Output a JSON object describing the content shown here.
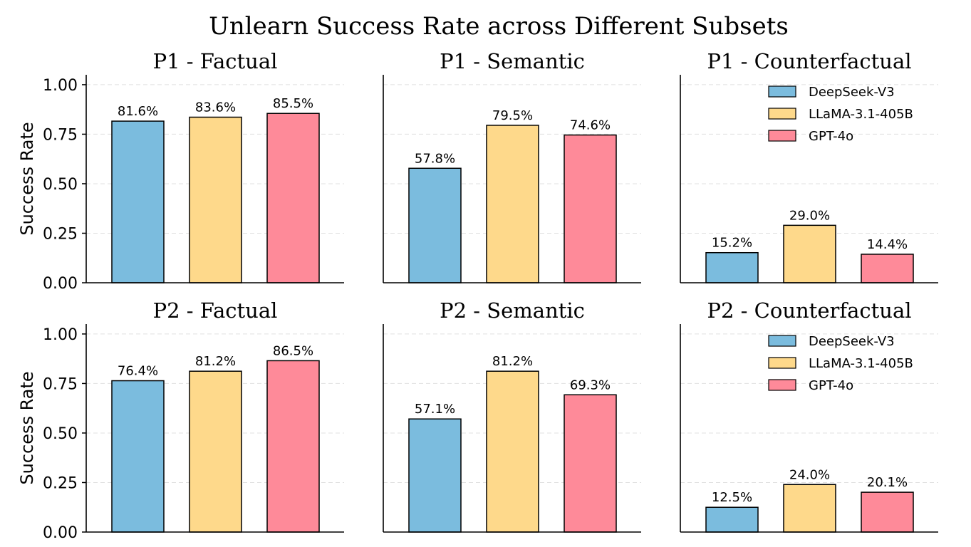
{
  "figure": {
    "suptitle": "Unlearn Success Rate across Different Subsets",
    "ylabel": "Success Rate"
  },
  "colors": {
    "DeepSeek-V3": "#7bbcde",
    "LLaMA-3.1-405B": "#fed98b",
    "GPT-4o": "#fe8a99",
    "grid": "#e0e0e0",
    "axis": "#000000"
  },
  "chart_data": [
    {
      "type": "bar",
      "title": "P1 - Factual",
      "categories": [
        "DeepSeek-V3",
        "LLaMA-3.1-405B",
        "GPT-4o"
      ],
      "values": [
        0.816,
        0.836,
        0.855
      ],
      "labels": [
        "81.6%",
        "83.6%",
        "85.5%"
      ],
      "ylabel": "Success Rate",
      "ylim": [
        0,
        1.05
      ],
      "yticks": [
        "0.00",
        "0.25",
        "0.50",
        "0.75",
        "1.00"
      ],
      "grid": true,
      "legend": false
    },
    {
      "type": "bar",
      "title": "P1 - Semantic",
      "categories": [
        "DeepSeek-V3",
        "LLaMA-3.1-405B",
        "GPT-4o"
      ],
      "values": [
        0.578,
        0.795,
        0.746
      ],
      "labels": [
        "57.8%",
        "79.5%",
        "74.6%"
      ],
      "ylim": [
        0,
        1.05
      ],
      "grid": true,
      "legend": false
    },
    {
      "type": "bar",
      "title": "P1 - Counterfactual",
      "categories": [
        "DeepSeek-V3",
        "LLaMA-3.1-405B",
        "GPT-4o"
      ],
      "values": [
        0.152,
        0.29,
        0.144
      ],
      "labels": [
        "15.2%",
        "29.0%",
        "14.4%"
      ],
      "ylim": [
        0,
        1.05
      ],
      "grid": true,
      "legend": "upper right",
      "legend_entries": [
        "DeepSeek-V3",
        "LLaMA-3.1-405B",
        "GPT-4o"
      ]
    },
    {
      "type": "bar",
      "title": "P2 - Factual",
      "categories": [
        "DeepSeek-V3",
        "LLaMA-3.1-405B",
        "GPT-4o"
      ],
      "values": [
        0.764,
        0.812,
        0.865
      ],
      "labels": [
        "76.4%",
        "81.2%",
        "86.5%"
      ],
      "ylabel": "Success Rate",
      "ylim": [
        0,
        1.05
      ],
      "yticks": [
        "0.00",
        "0.25",
        "0.50",
        "0.75",
        "1.00"
      ],
      "grid": true,
      "legend": false
    },
    {
      "type": "bar",
      "title": "P2 - Semantic",
      "categories": [
        "DeepSeek-V3",
        "LLaMA-3.1-405B",
        "GPT-4o"
      ],
      "values": [
        0.571,
        0.812,
        0.693
      ],
      "labels": [
        "57.1%",
        "81.2%",
        "69.3%"
      ],
      "ylim": [
        0,
        1.05
      ],
      "grid": true,
      "legend": false
    },
    {
      "type": "bar",
      "title": "P2 - Counterfactual",
      "categories": [
        "DeepSeek-V3",
        "LLaMA-3.1-405B",
        "GPT-4o"
      ],
      "values": [
        0.125,
        0.24,
        0.201
      ],
      "labels": [
        "12.5%",
        "24.0%",
        "20.1%"
      ],
      "ylim": [
        0,
        1.05
      ],
      "grid": true,
      "legend": "upper right",
      "legend_entries": [
        "DeepSeek-V3",
        "LLaMA-3.1-405B",
        "GPT-4o"
      ]
    }
  ]
}
